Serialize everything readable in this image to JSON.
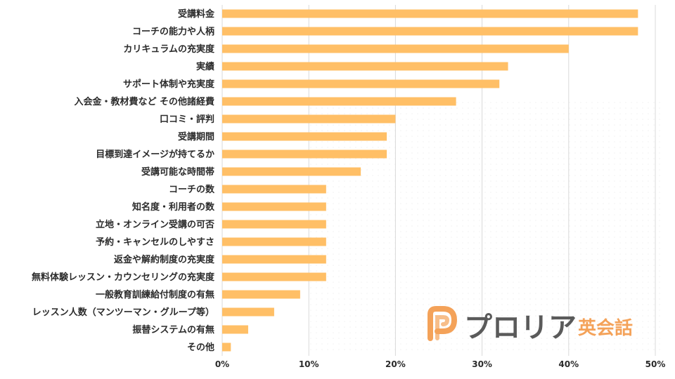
{
  "chart_data": {
    "type": "bar",
    "orientation": "horizontal",
    "categories": [
      "受講料金",
      "コーチの能力や人柄",
      "カリキュラムの充実度",
      "実績",
      "サポート体制や充実度",
      "入会金・教材費など その他諸経費",
      "口コミ・評判",
      "受講期間",
      "目標到達イメージが持てるか",
      "受講可能な時間帯",
      "コーチの数",
      "知名度・利用者の数",
      "立地・オンライン受講の可否",
      "予約・キャンセルのしやすさ",
      "返金や解約制度の充実度",
      "無料体験レッスン・カウンセリングの充実度",
      "一般教育訓練給付制度の有無",
      "レッスン人数（マンツーマン・グループ等）",
      "振替システムの有無",
      "その他"
    ],
    "values": [
      48,
      48,
      40,
      33,
      32,
      27,
      20,
      19,
      19,
      16,
      12,
      12,
      12,
      12,
      12,
      12,
      9,
      6,
      3,
      1
    ],
    "xlim": [
      0,
      50
    ],
    "xticks": [
      0,
      10,
      20,
      30,
      40,
      50
    ],
    "tick_labels": [
      "0%",
      "10%",
      "20%",
      "30%",
      "40%",
      "50%"
    ],
    "grid": true,
    "title": "",
    "xlabel": "",
    "ylabel": "",
    "bar_color": "#ffbf66",
    "grid_color": "#d9d9d9"
  },
  "logo": {
    "brand_text": "プロリア",
    "brand_sub": "英会話",
    "icon_name": "prolia-p-logo-icon",
    "icon_color": "#f4a259",
    "text_color": "#5a5a5a"
  }
}
